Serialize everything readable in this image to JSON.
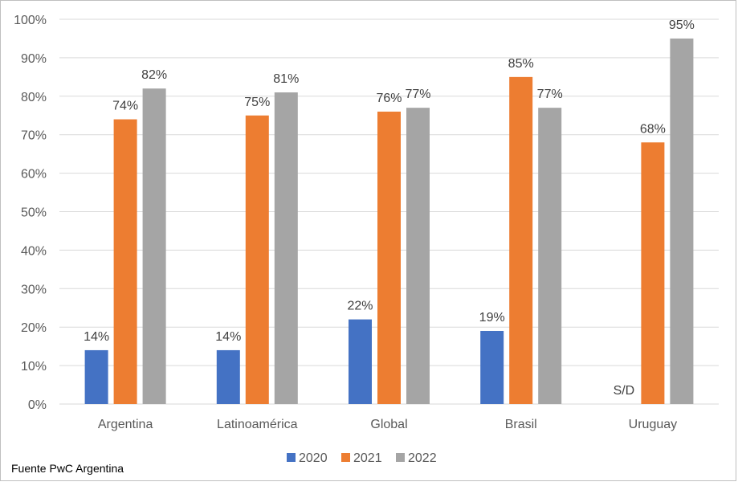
{
  "source_note": "Fuente PwC Argentina",
  "chart_data": {
    "type": "bar",
    "categories": [
      "Argentina",
      "Latinoamérica",
      "Global",
      "Brasil",
      "Uruguay"
    ],
    "series": [
      {
        "name": "2020",
        "color": "#4472c4",
        "values": [
          14,
          14,
          22,
          19,
          null
        ],
        "labels": [
          "14%",
          "14%",
          "22%",
          "19%",
          "S/D"
        ]
      },
      {
        "name": "2021",
        "color": "#ed7d31",
        "values": [
          74,
          75,
          76,
          85,
          68
        ],
        "labels": [
          "74%",
          "75%",
          "76%",
          "85%",
          "68%"
        ]
      },
      {
        "name": "2022",
        "color": "#a5a5a5",
        "values": [
          82,
          81,
          77,
          77,
          95
        ],
        "labels": [
          "82%",
          "81%",
          "77%",
          "77%",
          "95%"
        ]
      }
    ],
    "ylim": [
      0,
      100
    ],
    "yticks": [
      "0%",
      "10%",
      "20%",
      "30%",
      "40%",
      "50%",
      "60%",
      "70%",
      "80%",
      "90%",
      "100%"
    ],
    "grid": true,
    "legend_position": "bottom",
    "gridline_color": "#d9d9d9"
  }
}
